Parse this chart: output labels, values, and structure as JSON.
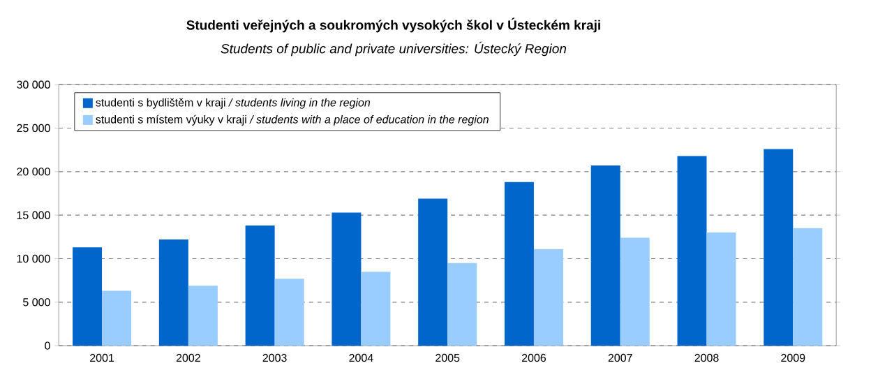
{
  "chart_data": {
    "type": "bar",
    "title": "Studenti  veřejných a soukromých vysokých škol v Ústeckém kraji",
    "subtitle": "Students of public and private universities: Ústecký Region",
    "categories": [
      "2001",
      "2002",
      "2003",
      "2004",
      "2005",
      "2006",
      "2007",
      "2008",
      "2009"
    ],
    "series": [
      {
        "name": "studenti s bydlištěm v kraji */ students living in the region*",
        "color": "#0066cc",
        "values": [
          11300,
          12200,
          13800,
          15300,
          16900,
          18800,
          20700,
          21800,
          22600
        ]
      },
      {
        "name": "studenti s místem výuky v kraji */ students with a place of education in the region*",
        "color": "#99ccff",
        "values": [
          6300,
          6900,
          7700,
          8500,
          9500,
          11100,
          12400,
          13000,
          13500
        ]
      }
    ],
    "ylim": [
      0,
      30000
    ],
    "yticks": [
      {
        "value": 0,
        "label": "0"
      },
      {
        "value": 5000,
        "label": "5 000"
      },
      {
        "value": 10000,
        "label": "10 000"
      },
      {
        "value": 15000,
        "label": "15 000"
      },
      {
        "value": 20000,
        "label": "20 000"
      },
      {
        "value": 25000,
        "label": "25 000"
      },
      {
        "value": 30000,
        "label": "30 000"
      }
    ],
    "grid": "y",
    "legend": "top left"
  }
}
